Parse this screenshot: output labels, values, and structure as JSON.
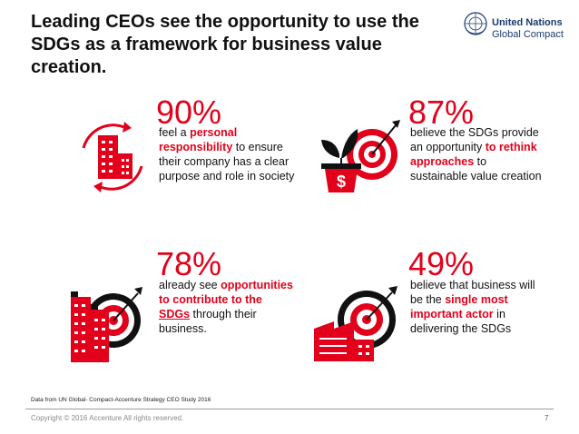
{
  "title_line1": "Leading CEOs see the opportunity to use the",
  "title_line2": "SDGs as a framework for business value creation.",
  "logo": {
    "line1": "United Nations",
    "line2": "Global Compact"
  },
  "colors": {
    "accent": "#e2001a",
    "text": "#111111",
    "muted": "#8a8a8a",
    "logo": "#1b3a6e"
  },
  "stats": [
    {
      "icon": "building-cycle-icon",
      "percent": "90%",
      "parts": [
        "feel a ",
        "personal responsibility",
        " to ensure their company has a clear purpose and role in society"
      ]
    },
    {
      "icon": "money-plant-target-icon",
      "percent": "87%",
      "parts": [
        "believe the SDGs provide an opportunity ",
        "to rethink approaches",
        " to sustainable value creation"
      ]
    },
    {
      "icon": "buildings-target-icon",
      "percent": "78%",
      "parts": [
        "already see ",
        "opportunities to contribute to the ",
        "SDGs",
        " through their business."
      ]
    },
    {
      "icon": "factory-target-icon",
      "percent": "49%",
      "parts": [
        "believe that business will be the ",
        "single most important actor",
        " in delivering the SDGs"
      ]
    }
  ],
  "source": "Data from UN Global- Compact-Accenture Strategy CEO Study 2016",
  "copyright": "Copyright © 2016 Accenture  All rights reserved.",
  "page_number": "7"
}
